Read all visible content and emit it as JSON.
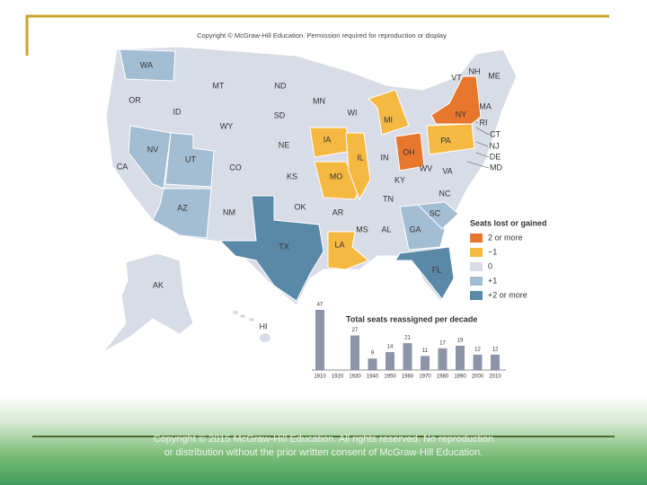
{
  "copyright_top": "Copyright © McGraw-Hill Education. Permission required for reproduction or display",
  "copyright_footer": "Copyright © 2015 McGraw-Hill Education. All rights reserved. No reproduction or distribution without the prior written consent of McGraw-Hill Education.",
  "map": {
    "legend_title": "Seats lost or gained",
    "legend": [
      {
        "label": "2 or more",
        "color": "#e8772e"
      },
      {
        "label": "−1",
        "color": "#f5b942"
      },
      {
        "label": "0",
        "color": "#d8dce6"
      },
      {
        "label": "+1",
        "color": "#a3bdd3"
      },
      {
        "label": "+2 or more",
        "color": "#5a89a8"
      }
    ],
    "states": [
      {
        "label": "WA",
        "color": "#a3bdd3"
      },
      {
        "label": "OR",
        "color": "#d8dce6"
      },
      {
        "label": "CA",
        "color": "#d8dce6"
      },
      {
        "label": "ID",
        "color": "#d8dce6"
      },
      {
        "label": "NV",
        "color": "#a3bdd3"
      },
      {
        "label": "UT",
        "color": "#a3bdd3"
      },
      {
        "label": "AZ",
        "color": "#a3bdd3"
      },
      {
        "label": "MT",
        "color": "#d8dce6"
      },
      {
        "label": "WY",
        "color": "#d8dce6"
      },
      {
        "label": "CO",
        "color": "#d8dce6"
      },
      {
        "label": "NM",
        "color": "#d8dce6"
      },
      {
        "label": "ND",
        "color": "#d8dce6"
      },
      {
        "label": "SD",
        "color": "#d8dce6"
      },
      {
        "label": "NE",
        "color": "#d8dce6"
      },
      {
        "label": "KS",
        "color": "#d8dce6"
      },
      {
        "label": "OK",
        "color": "#d8dce6"
      },
      {
        "label": "TX",
        "color": "#5a89a8"
      },
      {
        "label": "MN",
        "color": "#d8dce6"
      },
      {
        "label": "IA",
        "color": "#f5b942"
      },
      {
        "label": "MO",
        "color": "#f5b942"
      },
      {
        "label": "AR",
        "color": "#d8dce6"
      },
      {
        "label": "LA",
        "color": "#f5b942"
      },
      {
        "label": "WI",
        "color": "#d8dce6"
      },
      {
        "label": "IL",
        "color": "#f5b942"
      },
      {
        "label": "MI",
        "color": "#f5b942"
      },
      {
        "label": "IN",
        "color": "#d8dce6"
      },
      {
        "label": "OH",
        "color": "#e8772e"
      },
      {
        "label": "KY",
        "color": "#d8dce6"
      },
      {
        "label": "TN",
        "color": "#d8dce6"
      },
      {
        "label": "MS",
        "color": "#d8dce6"
      },
      {
        "label": "AL",
        "color": "#d8dce6"
      },
      {
        "label": "GA",
        "color": "#a3bdd3"
      },
      {
        "label": "FL",
        "color": "#5a89a8"
      },
      {
        "label": "SC",
        "color": "#a3bdd3"
      },
      {
        "label": "NC",
        "color": "#d8dce6"
      },
      {
        "label": "VA",
        "color": "#d8dce6"
      },
      {
        "label": "WV",
        "color": "#d8dce6"
      },
      {
        "label": "PA",
        "color": "#f5b942"
      },
      {
        "label": "NY",
        "color": "#e8772e"
      },
      {
        "label": "VT",
        "color": "#d8dce6"
      },
      {
        "label": "NH",
        "color": "#d8dce6"
      },
      {
        "label": "ME",
        "color": "#d8dce6"
      },
      {
        "label": "MA",
        "color": "#f5b942"
      },
      {
        "label": "RI",
        "color": "#d8dce6"
      },
      {
        "label": "CT",
        "color": "#d8dce6"
      },
      {
        "label": "NJ",
        "color": "#f5b942"
      },
      {
        "label": "DE",
        "color": "#d8dce6"
      },
      {
        "label": "MD",
        "color": "#d8dce6"
      },
      {
        "label": "AK",
        "color": "#d8dce6"
      },
      {
        "label": "HI",
        "color": "#d8dce6"
      }
    ]
  },
  "chart_data": {
    "type": "bar",
    "title": "Total seats reassigned per decade",
    "categories": [
      "1910",
      "1920",
      "1930",
      "1940",
      "1950",
      "1960",
      "1970",
      "1980",
      "1990",
      "2000",
      "2010"
    ],
    "values": [
      47,
      null,
      27,
      9,
      14,
      21,
      11,
      17,
      19,
      12,
      12
    ],
    "color": "#8c95a8"
  }
}
